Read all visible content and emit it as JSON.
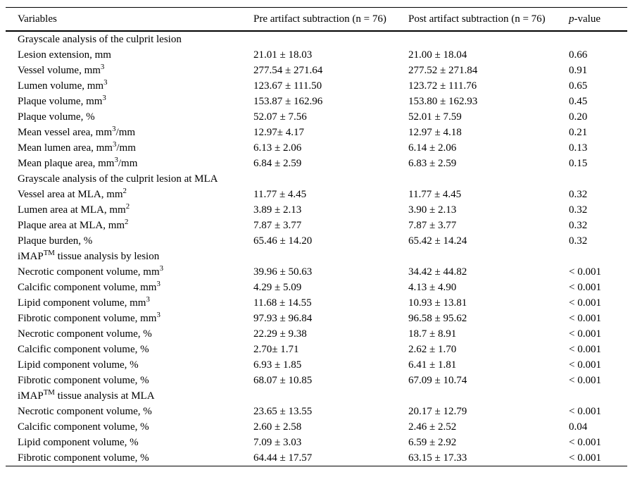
{
  "colors": {
    "background": "#ffffff",
    "text": "#000000",
    "border": "#000000"
  },
  "table": {
    "header": {
      "variables": "Variables",
      "pre": "Pre artifact subtraction (n = 76)",
      "post": "Post artifact subtraction (n = 76)",
      "p_italic": "p",
      "p_rest": "-value"
    },
    "rows": [
      {
        "type": "section",
        "label": "Grayscale analysis of the culprit lesion"
      },
      {
        "type": "data",
        "label": "Lesion extension, mm",
        "pre": "21.01 ± 18.03",
        "post": "21.00 ± 18.04",
        "p": "0.66"
      },
      {
        "type": "data",
        "label": "Vessel volume, mm^{3}",
        "pre": "277.54 ± 271.64",
        "post": "277.52 ± 271.84",
        "p": "0.91"
      },
      {
        "type": "data",
        "label": "Lumen volume, mm^{3}",
        "pre": "123.67 ± 111.50",
        "post": "123.72 ± 111.76",
        "p": "0.65"
      },
      {
        "type": "data",
        "label": "Plaque volume, mm^{3}",
        "pre": "153.87 ± 162.96",
        "post": "153.80 ± 162.93",
        "p": "0.45"
      },
      {
        "type": "data",
        "label": "Plaque volume, %",
        "pre": "52.07 ± 7.56",
        "post": "52.01 ± 7.59",
        "p": "0.20"
      },
      {
        "type": "data",
        "label": "Mean vessel area, mm^{3}/mm",
        "pre": "12.97± 4.17",
        "post": "12.97 ± 4.18",
        "p": "0.21"
      },
      {
        "type": "data",
        "label": "Mean lumen area, mm^{3}/mm",
        "pre": "6.13 ± 2.06",
        "post": "6.14 ± 2.06",
        "p": "0.13"
      },
      {
        "type": "data",
        "label": "Mean plaque area, mm^{3}/mm",
        "pre": "6.84 ± 2.59",
        "post": "6.83 ± 2.59",
        "p": "0.15"
      },
      {
        "type": "section",
        "label": "Grayscale analysis of the culprit lesion at MLA"
      },
      {
        "type": "data",
        "label": "Vessel area at MLA, mm^{2}",
        "pre": "11.77 ± 4.45",
        "post": "11.77 ± 4.45",
        "p": "0.32"
      },
      {
        "type": "data",
        "label": "Lumen area at MLA, mm^{2}",
        "pre": "3.89 ± 2.13",
        "post": "3.90 ± 2.13",
        "p": "0.32"
      },
      {
        "type": "data",
        "label": "Plaque area at MLA, mm^{2}",
        "pre": "7.87 ± 3.77",
        "post": "7.87 ± 3.77",
        "p": "0.32"
      },
      {
        "type": "data",
        "label": "Plaque burden, %",
        "pre": "65.46 ± 14.20",
        "post": "65.42 ± 14.24",
        "p": "0.32"
      },
      {
        "type": "section",
        "label": "iMAP^{TM} tissue analysis by lesion"
      },
      {
        "type": "data",
        "label": "Necrotic component volume, mm^{3}",
        "pre": "39.96 ± 50.63",
        "post": "34.42 ± 44.82",
        "p": "< 0.001"
      },
      {
        "type": "data",
        "label": "Calcific component volume, mm^{3}",
        "pre": "4.29 ± 5.09",
        "post": "4.13 ± 4.90",
        "p": "< 0.001"
      },
      {
        "type": "data",
        "label": "Lipid component volume, mm^{3}",
        "pre": "11.68 ± 14.55",
        "post": "10.93 ± 13.81",
        "p": "< 0.001"
      },
      {
        "type": "data",
        "label": "Fibrotic component volume, mm^{3}",
        "pre": "97.93 ± 96.84",
        "post": "96.58 ± 95.62",
        "p": "< 0.001"
      },
      {
        "type": "data",
        "label": "Necrotic component volume, %",
        "pre": "22.29 ± 9.38",
        "post": "18.7 ± 8.91",
        "p": "< 0.001"
      },
      {
        "type": "data",
        "label": "Calcific component volume, %",
        "pre": "2.70± 1.71",
        "post": "2.62 ± 1.70",
        "p": "< 0.001"
      },
      {
        "type": "data",
        "label": "Lipid component volume, %",
        "pre": "6.93 ± 1.85",
        "post": "6.41 ± 1.81",
        "p": "< 0.001"
      },
      {
        "type": "data",
        "label": "Fibrotic component volume, %",
        "pre": "68.07 ± 10.85",
        "post": "67.09 ± 10.74",
        "p": "< 0.001"
      },
      {
        "type": "section",
        "label": "iMAP^{TM} tissue analysis at MLA"
      },
      {
        "type": "data",
        "label": "Necrotic component volume, %",
        "pre": "23.65 ± 13.55",
        "post": "20.17 ± 12.79",
        "p": "< 0.001"
      },
      {
        "type": "data",
        "label": "Calcific component volume, %",
        "pre": "2.60 ± 2.58",
        "post": "2.46 ± 2.52",
        "p": "0.04"
      },
      {
        "type": "data",
        "label": "Lipid component volume, %",
        "pre": "7.09 ± 3.03",
        "post": "6.59 ± 2.92",
        "p": "< 0.001"
      },
      {
        "type": "data",
        "label": "Fibrotic component volume, %",
        "pre": "64.44 ± 17.57",
        "post": "63.15 ± 17.33",
        "p": "< 0.001"
      }
    ]
  }
}
